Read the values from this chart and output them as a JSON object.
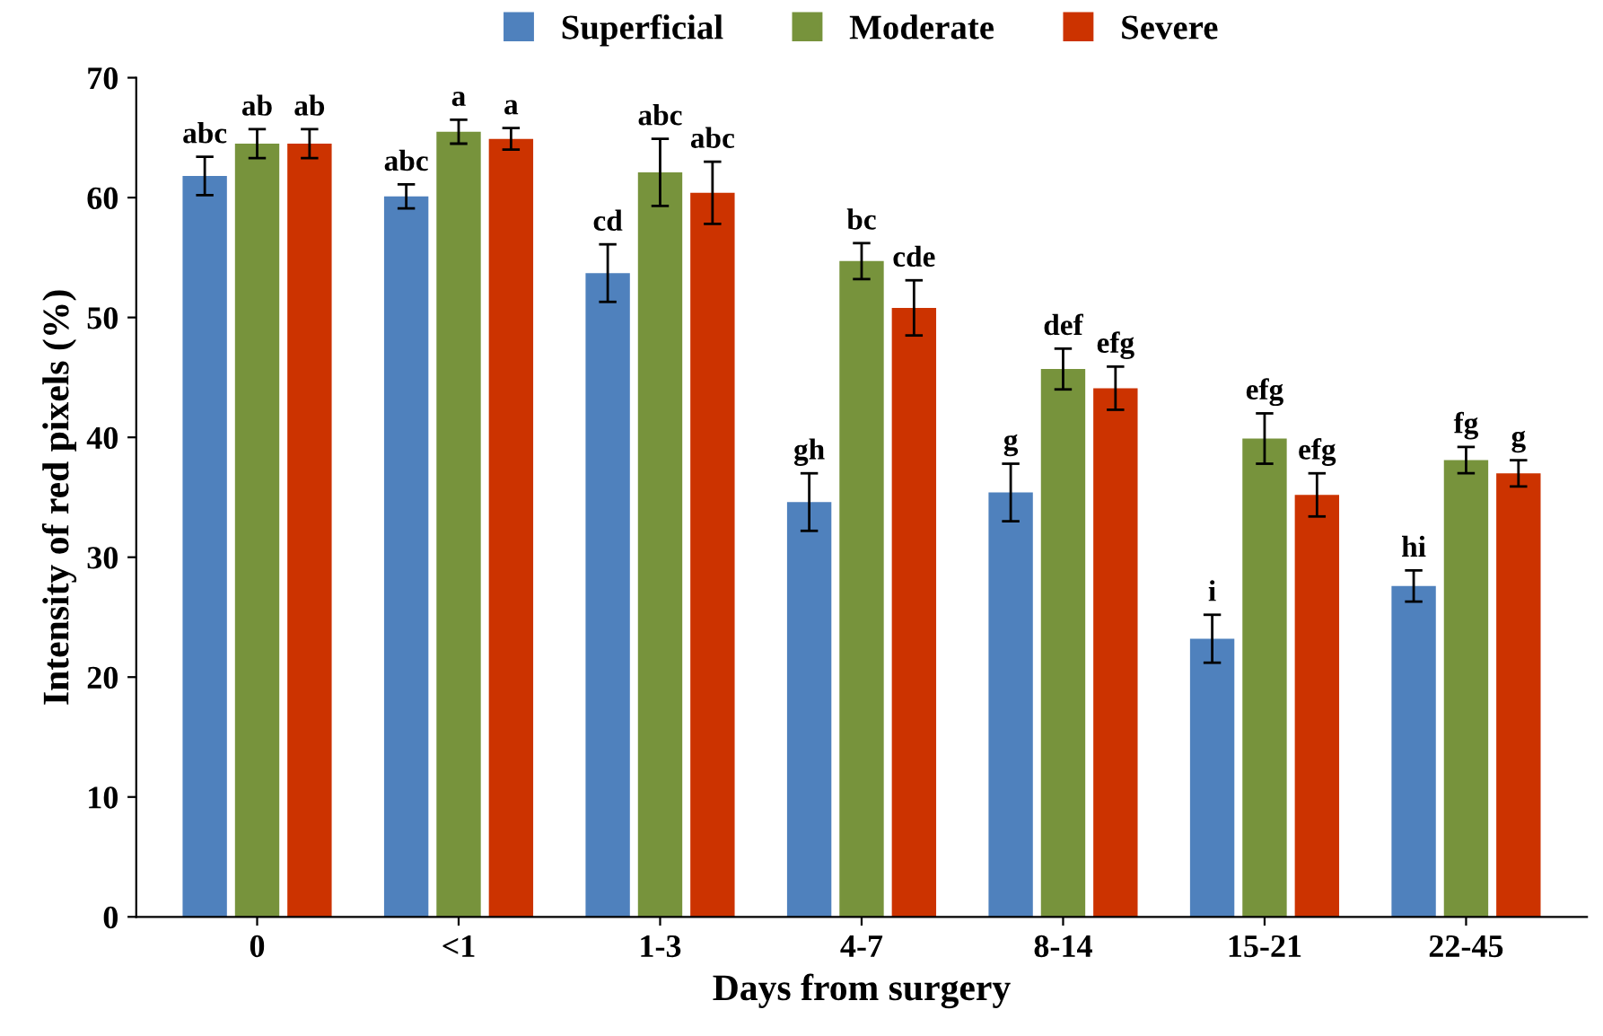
{
  "chart_data": {
    "type": "bar",
    "xlabel": "Days from surgery",
    "ylabel": "Intensity of red pixels (%)",
    "categories": [
      "0",
      "<1",
      "1-3",
      "4-7",
      "8-14",
      "15-21",
      "22-45"
    ],
    "ylim": [
      0,
      70
    ],
    "yticks": [
      0,
      10,
      20,
      30,
      40,
      50,
      60,
      70
    ],
    "grid": false,
    "legend": "top",
    "series": [
      {
        "name": "Superficial",
        "color": "#4f81bd",
        "values": [
          61.8,
          60.1,
          53.7,
          34.6,
          35.4,
          23.2,
          27.6
        ],
        "errors": [
          1.6,
          1.0,
          2.4,
          2.4,
          2.4,
          2.0,
          1.3
        ],
        "value_labels": [
          "abc",
          "abc",
          "cd",
          "gh",
          "g",
          "i",
          "hi"
        ]
      },
      {
        "name": "Moderate",
        "color": "#77933c",
        "values": [
          64.5,
          65.5,
          62.1,
          54.7,
          45.7,
          39.9,
          38.1
        ],
        "errors": [
          1.2,
          1.0,
          2.8,
          1.5,
          1.7,
          2.1,
          1.1
        ],
        "value_labels": [
          "ab",
          "a",
          "abc",
          "bc",
          "def",
          "efg",
          "fg"
        ]
      },
      {
        "name": "Severe",
        "color": "#cc3300",
        "values": [
          64.5,
          64.9,
          60.4,
          50.8,
          44.1,
          35.2,
          37.0
        ],
        "errors": [
          1.2,
          0.9,
          2.6,
          2.3,
          1.8,
          1.8,
          1.1
        ],
        "value_labels": [
          "ab",
          "a",
          "abc",
          "cde",
          "efg",
          "efg",
          "g"
        ]
      }
    ]
  }
}
